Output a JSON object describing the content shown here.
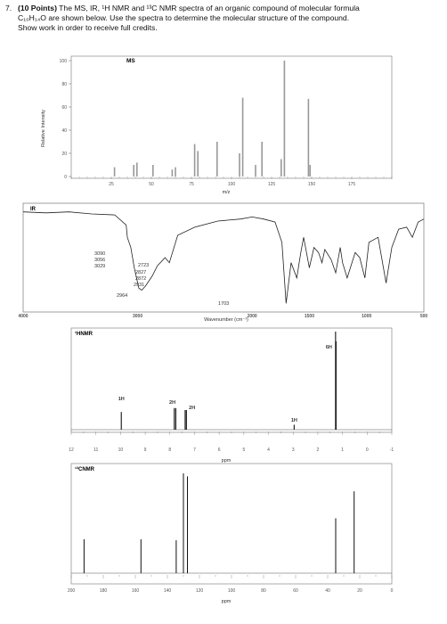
{
  "question": {
    "number": "7.",
    "points": "(10 Points)",
    "line1": " The MS, IR, ¹H NMR and ¹³C NMR spectra of an organic compound of molecular formula",
    "line2": "C₁₀H₁₄O are shown below. Use the spectra to determine the molecular structure of the compound.",
    "line3": "Show work in order to receive full credits."
  },
  "ms": {
    "title": "MS",
    "ylabel": "Relative Intensity",
    "xlabel": "m/z",
    "y_ticks": [
      "100",
      "80",
      "60",
      "40",
      "20",
      "0"
    ],
    "x_ticks": [
      "25",
      "50",
      "75",
      "100",
      "125",
      "150",
      "175"
    ]
  },
  "ir": {
    "title": "IR",
    "x_ticks": [
      "4000",
      "3000",
      "2000",
      "1500",
      "1000",
      "500"
    ],
    "xlabel": "Wavenumber (cm⁻¹)",
    "peak_labels": [
      "3090",
      "3056",
      "3029",
      "2723",
      "2827",
      "2872",
      "2931",
      "2964",
      "1703"
    ]
  },
  "hnmr": {
    "title": "¹HNMR",
    "xlabel": "ppm",
    "x_ticks": [
      "12",
      "11",
      "10",
      "9",
      "8",
      "7",
      "6",
      "5",
      "4",
      "3",
      "2",
      "1",
      "0",
      "-1"
    ],
    "integrations": [
      "1H",
      "2H",
      "2H",
      "1H",
      "6H"
    ]
  },
  "cnmr": {
    "title": "¹³CNMR",
    "xlabel": "ppm",
    "x_ticks": [
      "200",
      "180",
      "160",
      "140",
      "120",
      "100",
      "80",
      "60",
      "40",
      "20",
      "0"
    ]
  },
  "chart_data": [
    {
      "type": "bar",
      "title": "MS",
      "xlabel": "m/z",
      "ylabel": "Relative Intensity",
      "xlim": [
        0,
        200
      ],
      "ylim": [
        0,
        100
      ],
      "x": [
        27,
        39,
        41,
        51,
        63,
        65,
        77,
        79,
        91,
        105,
        107,
        115,
        119,
        131,
        133,
        148,
        149
      ],
      "values": [
        8,
        10,
        12,
        10,
        6,
        8,
        28,
        22,
        30,
        20,
        68,
        10,
        30,
        15,
        100,
        67,
        10
      ]
    },
    {
      "type": "line",
      "title": "IR",
      "xlabel": "Wavenumber (cm⁻¹)",
      "xlim": [
        4000,
        500
      ],
      "x": [
        4000,
        3800,
        3600,
        3400,
        3200,
        3100,
        3090,
        3060,
        3029,
        2990,
        2964,
        2931,
        2872,
        2827,
        2760,
        2723,
        2650,
        2500,
        2300,
        2100,
        2000,
        1900,
        1800,
        1740,
        1703,
        1660,
        1610,
        1575,
        1550,
        1500,
        1460,
        1420,
        1390,
        1365,
        1310,
        1270,
        1230,
        1210,
        1170,
        1100,
        1060,
        1015,
        980,
        900,
        830,
        780,
        720,
        650,
        600,
        550,
        500
      ],
      "values": [
        95,
        94,
        95,
        93,
        92,
        82,
        70,
        60,
        40,
        20,
        18,
        22,
        32,
        42,
        50,
        45,
        72,
        80,
        86,
        88,
        90,
        88,
        85,
        65,
        5,
        45,
        30,
        55,
        70,
        40,
        60,
        55,
        45,
        58,
        48,
        35,
        60,
        45,
        30,
        55,
        50,
        30,
        65,
        70,
        25,
        60,
        78,
        80,
        70,
        85,
        88
      ]
    },
    {
      "type": "bar",
      "title": "¹HNMR",
      "xlabel": "ppm",
      "xlim": [
        12,
        -1
      ],
      "x": [
        9.97,
        7.82,
        7.76,
        7.38,
        7.33,
        2.96,
        1.28,
        1.26
      ],
      "values": [
        18,
        22,
        22,
        20,
        20,
        5,
        100,
        90
      ]
    },
    {
      "type": "bar",
      "title": "¹³CNMR",
      "xlabel": "ppm",
      "xlim": [
        200,
        0
      ],
      "x": [
        192.0,
        156.5,
        134.5,
        130.0,
        127.5,
        35.0,
        23.5
      ],
      "values": [
        34,
        34,
        33,
        100,
        97,
        55,
        82
      ]
    }
  ]
}
